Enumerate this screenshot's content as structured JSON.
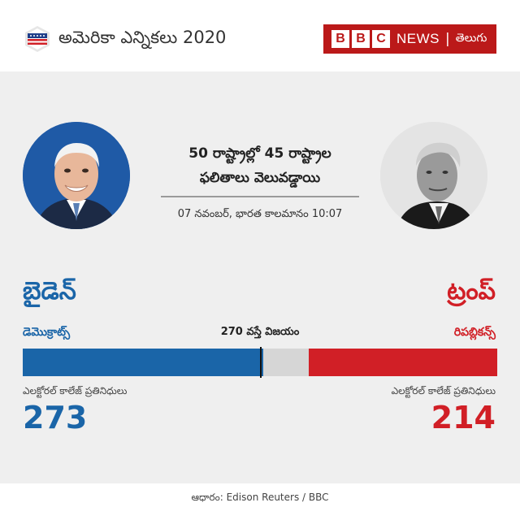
{
  "header": {
    "title": "అమెరికా ఎన్నికలు 2020",
    "icon": "us-flag-shield-icon"
  },
  "brand": {
    "blocks": [
      "B",
      "B",
      "C"
    ],
    "news": "NEWS",
    "separator": "|",
    "language": "తెలుగు",
    "color": "#bb1919"
  },
  "headline": {
    "line1": "50 రాష్ట్రాల్లో 45 రాష్ట్రాల",
    "line2": "ఫలితాలు వెలువడ్డాయి",
    "timestamp": "07 నవంబర్, భారత కాలమానం 10:07"
  },
  "threshold": {
    "label": "270 వస్తే విజయం",
    "value": 270
  },
  "total_electoral_votes": 538,
  "candidates": {
    "biden": {
      "name": "బైడెన్",
      "party": "డెమొక్రాట్స్",
      "ev_label": "ఎలక్టోరల్ కాలేజ్ ప్రతినిధులు",
      "electoral_votes": "273",
      "color": "#1a65a8"
    },
    "trump": {
      "name": "ట్రంప్",
      "party": "రిపబ్లికన్స్",
      "ev_label": "ఎలక్టోరల్ కాలేజ్ ప్రతినిధులు",
      "electoral_votes": "214",
      "color": "#d11f26"
    }
  },
  "source": "ఆధారం: Edison Reuters / BBC"
}
